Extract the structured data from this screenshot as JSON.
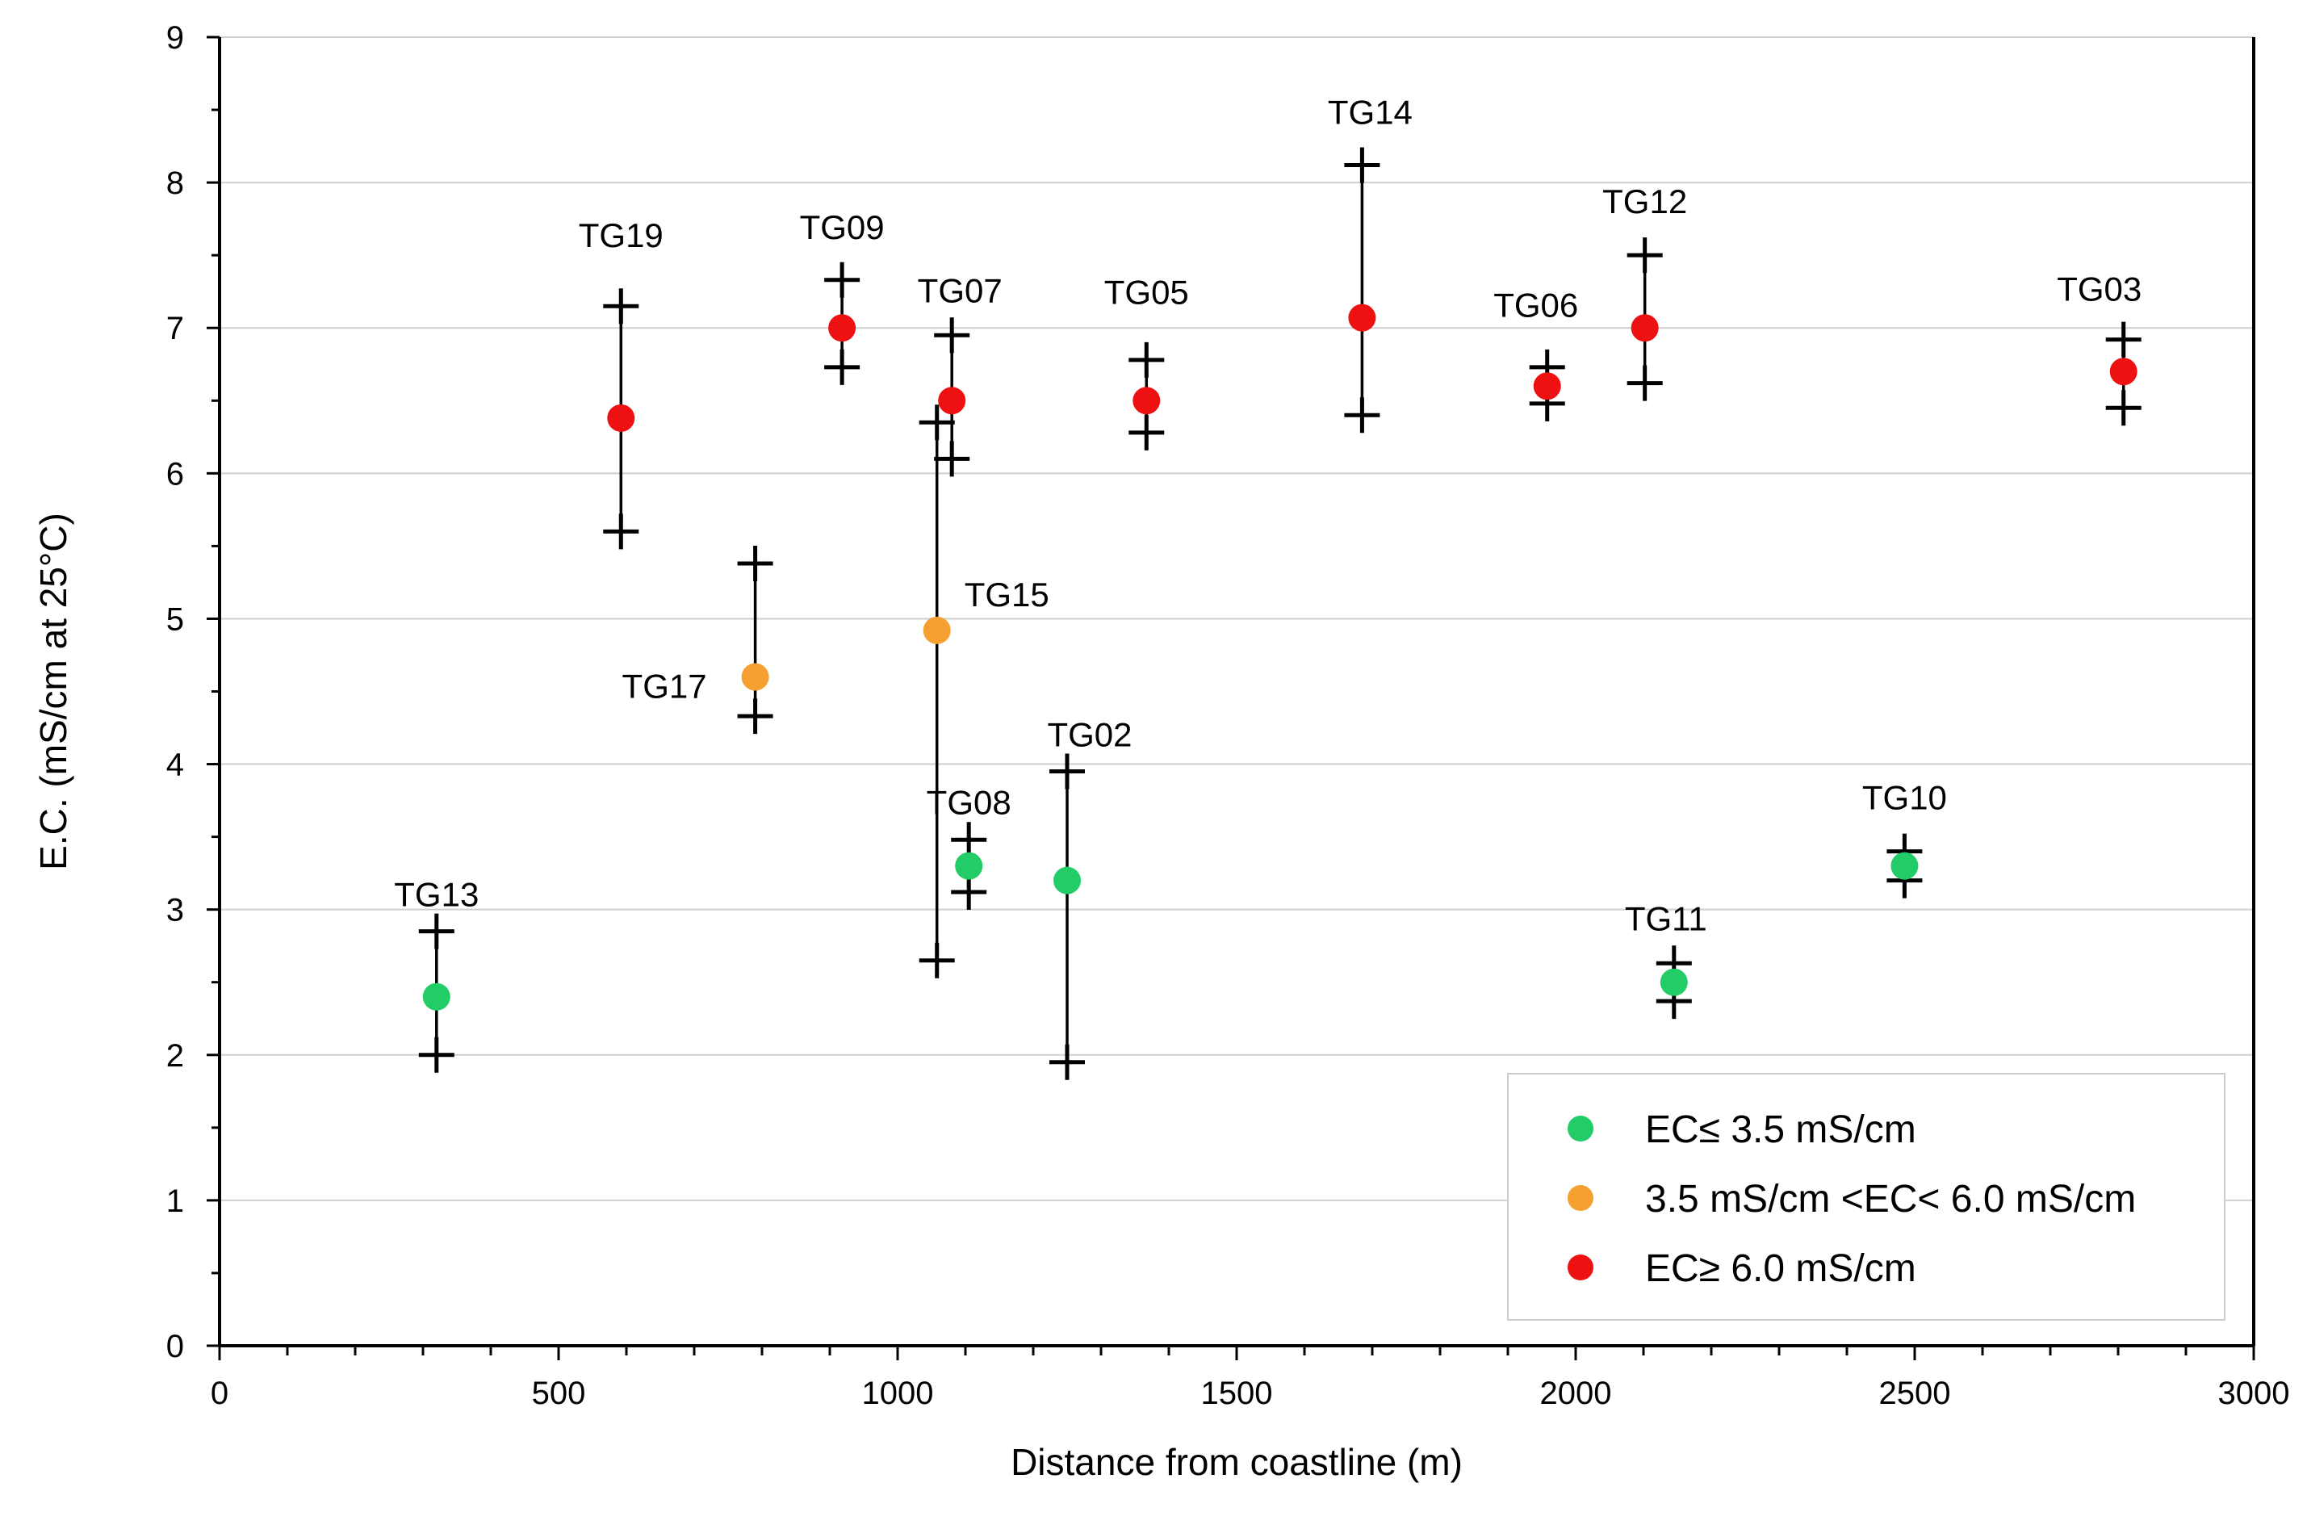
{
  "chart_data": {
    "type": "scatter",
    "title": "",
    "xlabel": "Distance from coastline (m)",
    "ylabel": "E.C. (mS/cm at 25°C)",
    "xlim": [
      0,
      3000
    ],
    "ylim": [
      0,
      9
    ],
    "x_ticks": [
      "0",
      "500",
      "1000",
      "1500",
      "2000",
      "2500",
      "3000"
    ],
    "y_ticks": [
      "0",
      "1",
      "2",
      "3",
      "4",
      "5",
      "6",
      "7",
      "8",
      "9"
    ],
    "grid": "horizontal",
    "legend_position": "bottom-right",
    "categories": [
      {
        "key": "low",
        "name": "EC≤ 3.5 mS/cm",
        "color": "#22cc66"
      },
      {
        "key": "mid",
        "name": "3.5 mS/cm <EC< 6.0 mS/cm",
        "color": "#f5a030"
      },
      {
        "key": "high",
        "name": "EC≥ 6.0 mS/cm",
        "color": "#ee1111"
      }
    ],
    "points": [
      {
        "label": "TG13",
        "x": 320,
        "y": 2.4,
        "min": 2.0,
        "max": 2.85,
        "category": "low"
      },
      {
        "label": "TG19",
        "x": 592,
        "y": 6.38,
        "min": 5.6,
        "max": 7.15,
        "category": "high"
      },
      {
        "label": "TG17",
        "x": 790,
        "y": 4.6,
        "min": 4.33,
        "max": 5.38,
        "category": "mid"
      },
      {
        "label": "TG09",
        "x": 918,
        "y": 7.0,
        "min": 6.73,
        "max": 7.33,
        "category": "high"
      },
      {
        "label": "TG15",
        "x": 1058,
        "y": 4.92,
        "min": 2.65,
        "max": 6.35,
        "category": "mid"
      },
      {
        "label": "TG07",
        "x": 1080,
        "y": 6.5,
        "min": 6.1,
        "max": 6.95,
        "category": "high"
      },
      {
        "label": "TG08",
        "x": 1105,
        "y": 3.3,
        "min": 3.12,
        "max": 3.48,
        "category": "low"
      },
      {
        "label": "TG02",
        "x": 1250,
        "y": 3.2,
        "min": 1.95,
        "max": 3.95,
        "category": "low"
      },
      {
        "label": "TG05",
        "x": 1367,
        "y": 6.5,
        "min": 6.28,
        "max": 6.78,
        "category": "high"
      },
      {
        "label": "TG14",
        "x": 1685,
        "y": 7.07,
        "min": 6.4,
        "max": 8.12,
        "category": "high"
      },
      {
        "label": "TG06",
        "x": 1958,
        "y": 6.6,
        "min": 6.48,
        "max": 6.73,
        "category": "high"
      },
      {
        "label": "TG12",
        "x": 2102,
        "y": 7.0,
        "min": 6.62,
        "max": 7.5,
        "category": "high"
      },
      {
        "label": "TG11",
        "x": 2145,
        "y": 2.5,
        "min": 2.37,
        "max": 2.63,
        "category": "low"
      },
      {
        "label": "TG10",
        "x": 2485,
        "y": 3.3,
        "min": 3.2,
        "max": 3.4,
        "category": "low"
      },
      {
        "label": "TG03",
        "x": 2808,
        "y": 6.7,
        "min": 6.45,
        "max": 6.92,
        "category": "high"
      }
    ]
  }
}
